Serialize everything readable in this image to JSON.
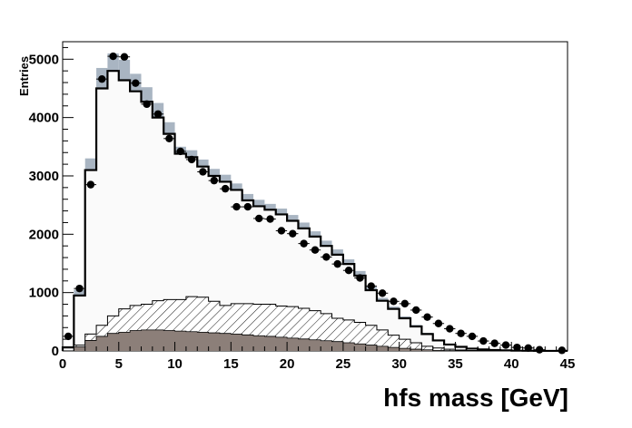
{
  "chart_data": {
    "type": "histogram",
    "xlabel": "hfs mass [GeV]",
    "ylabel": "Entries",
    "title": "",
    "xlim": [
      0,
      45
    ],
    "ylim": [
      0,
      5300
    ],
    "xticks": [
      0,
      5,
      10,
      15,
      20,
      25,
      30,
      35,
      40,
      45
    ],
    "yticks": [
      0,
      1000,
      2000,
      3000,
      4000,
      5000
    ],
    "bin_width": 1,
    "bin_edges_start": 0,
    "grid": false,
    "legend": "none",
    "colors": {
      "mc_total_line": "#000000",
      "mc_fill": "#fafafa",
      "mc_uncertainty_band": "#a9b5c2",
      "hatched_component": "#000000",
      "grey_component": "#8c7f79",
      "data_points": "#000000"
    },
    "series": [
      {
        "kind": "data_points",
        "x": [
          0.5,
          1.5,
          2.5,
          3.5,
          4.5,
          5.5,
          6.5,
          7.5,
          8.5,
          9.5,
          10.5,
          11.5,
          12.5,
          13.5,
          14.5,
          15.5,
          16.5,
          17.5,
          18.5,
          19.5,
          20.5,
          21.5,
          22.5,
          23.5,
          24.5,
          25.5,
          26.5,
          27.5,
          28.5,
          29.5,
          30.5,
          31.5,
          32.5,
          33.5,
          34.5,
          35.5,
          36.5,
          37.5,
          38.5,
          39.5,
          40.5,
          41.5,
          42.5,
          44.5
        ],
        "values": [
          250,
          1070,
          2850,
          4660,
          5050,
          5040,
          4590,
          4230,
          4060,
          3640,
          3420,
          3280,
          3070,
          2920,
          2780,
          2470,
          2470,
          2270,
          2260,
          2060,
          2010,
          1840,
          1730,
          1610,
          1490,
          1380,
          1250,
          1110,
          990,
          850,
          810,
          700,
          580,
          470,
          380,
          300,
          250,
          170,
          130,
          100,
          60,
          50,
          20,
          10
        ]
      },
      {
        "kind": "mc_total_histogram",
        "values": [
          60,
          950,
          3100,
          4500,
          4800,
          4640,
          4450,
          4270,
          4000,
          3720,
          3380,
          3320,
          3160,
          3000,
          2900,
          2760,
          2580,
          2480,
          2420,
          2340,
          2230,
          2100,
          1960,
          1800,
          1650,
          1490,
          1290,
          1040,
          860,
          720,
          560,
          420,
          290,
          180,
          110,
          70,
          40,
          25,
          15,
          10,
          5,
          3,
          2,
          1,
          1
        ],
        "uncertainty": [
          20,
          100,
          200,
          350,
          300,
          350,
          300,
          250,
          250,
          200,
          120,
          120,
          120,
          120,
          120,
          110,
          110,
          110,
          100,
          100,
          100,
          100,
          90,
          90,
          90,
          80,
          80,
          60,
          50,
          40,
          30,
          25,
          20,
          15,
          10,
          8,
          5,
          4,
          3,
          2,
          1,
          1,
          1,
          1,
          1
        ]
      },
      {
        "kind": "hatched_component",
        "values": [
          0,
          100,
          290,
          440,
          600,
          720,
          780,
          800,
          860,
          880,
          880,
          930,
          920,
          850,
          780,
          810,
          810,
          800,
          800,
          770,
          760,
          730,
          690,
          640,
          560,
          530,
          490,
          440,
          360,
          270,
          200,
          140,
          80,
          50,
          30,
          15,
          8,
          4,
          2,
          1,
          0,
          0,
          0,
          0,
          0
        ]
      },
      {
        "kind": "grey_component",
        "values": [
          0,
          70,
          180,
          250,
          300,
          320,
          350,
          360,
          360,
          350,
          340,
          330,
          320,
          310,
          300,
          290,
          275,
          260,
          250,
          235,
          220,
          205,
          190,
          175,
          160,
          140,
          120,
          100,
          80,
          60,
          45,
          30,
          20,
          10,
          5,
          3,
          1,
          0,
          0,
          0,
          0,
          0,
          0,
          0,
          0
        ]
      }
    ]
  }
}
